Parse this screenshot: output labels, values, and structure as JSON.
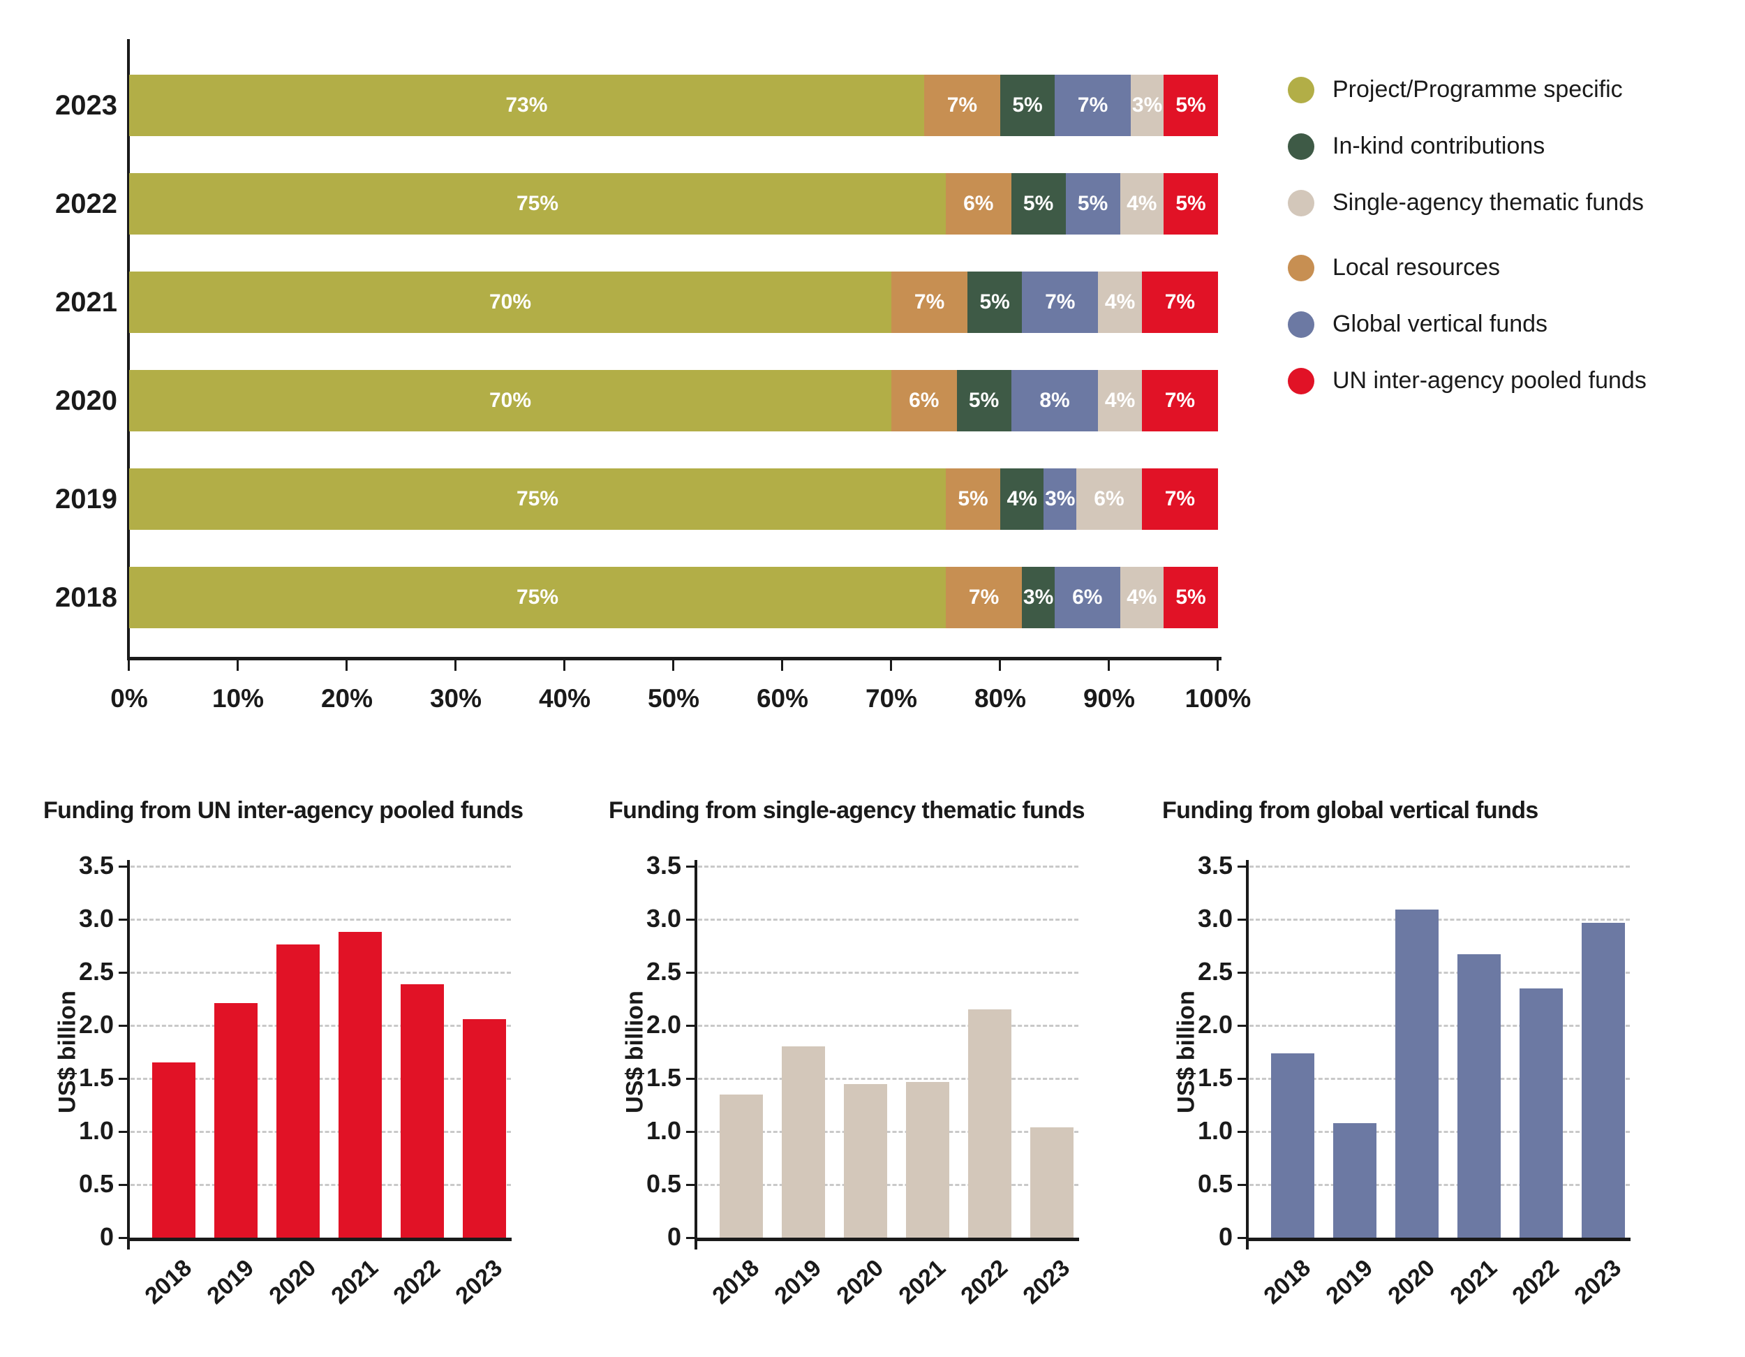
{
  "colors": {
    "project": "#b2ae47",
    "inkind": "#3e5a46",
    "thematic": "#d3c7ba",
    "local": "#c78f52",
    "vertical": "#6c79a3",
    "pooled": "#e11226",
    "text": "#1a1a1a",
    "grid": "#c9c9c9",
    "bar_label": "#ffffff"
  },
  "legend": {
    "items": [
      {
        "label": "Project/Programme specific",
        "color_key": "project"
      },
      {
        "label": "In-kind contributions",
        "color_key": "inkind"
      },
      {
        "label": "Single-agency thematic funds",
        "color_key": "thematic"
      },
      {
        "label": "Local resources",
        "color_key": "local"
      },
      {
        "label": "Global vertical funds",
        "color_key": "vertical"
      },
      {
        "label": "UN inter-agency pooled funds",
        "color_key": "pooled"
      }
    ]
  },
  "chart_data": [
    {
      "id": "funding-shares-by-year",
      "type": "bar",
      "variant": "horizontal-stacked",
      "unit": "%",
      "categories": [
        "2023",
        "2022",
        "2021",
        "2020",
        "2019",
        "2018"
      ],
      "series": [
        {
          "name": "Project/Programme specific",
          "color_key": "project",
          "values": [
            73,
            75,
            70,
            70,
            75,
            75
          ]
        },
        {
          "name": "Local resources",
          "color_key": "local",
          "values": [
            7,
            6,
            7,
            6,
            5,
            7
          ]
        },
        {
          "name": "In-kind contributions",
          "color_key": "inkind",
          "values": [
            5,
            5,
            5,
            5,
            4,
            3
          ]
        },
        {
          "name": "Global vertical funds",
          "color_key": "vertical",
          "values": [
            7,
            5,
            7,
            8,
            3,
            6
          ]
        },
        {
          "name": "Single-agency thematic funds",
          "color_key": "thematic",
          "values": [
            3,
            4,
            4,
            4,
            6,
            4
          ]
        },
        {
          "name": "UN inter-agency pooled funds",
          "color_key": "pooled",
          "values": [
            5,
            5,
            7,
            7,
            7,
            5
          ]
        }
      ],
      "xlim": [
        0,
        100
      ],
      "x_tick_labels": [
        "0%",
        "10%",
        "20%",
        "30%",
        "40%",
        "50%",
        "60%",
        "70%",
        "80%",
        "90%",
        "100%"
      ],
      "grid": false,
      "legend_position": "right"
    },
    {
      "id": "pooled-funds-by-year",
      "type": "bar",
      "title": "Funding from UN inter-agency pooled funds",
      "ylabel": "US$ billion",
      "categories": [
        "2018",
        "2019",
        "2020",
        "2021",
        "2022",
        "2023"
      ],
      "values": [
        1.65,
        2.21,
        2.76,
        2.88,
        2.39,
        2.06
      ],
      "color_key": "pooled",
      "ylim": [
        0,
        3.5
      ],
      "y_tick_labels": [
        "0",
        "0.5",
        "1.0",
        "1.5",
        "2.0",
        "2.5",
        "3.0",
        "3.5"
      ],
      "grid": true
    },
    {
      "id": "thematic-funds-by-year",
      "type": "bar",
      "title": "Funding from single-agency thematic funds",
      "ylabel": "US$ billion",
      "categories": [
        "2018",
        "2019",
        "2020",
        "2021",
        "2022",
        "2023"
      ],
      "values": [
        1.35,
        1.8,
        1.45,
        1.47,
        2.15,
        1.04
      ],
      "color_key": "thematic",
      "ylim": [
        0,
        3.5
      ],
      "y_tick_labels": [
        "0",
        "0.5",
        "1.0",
        "1.5",
        "2.0",
        "2.5",
        "3.0",
        "3.5"
      ],
      "grid": true
    },
    {
      "id": "vertical-funds-by-year",
      "type": "bar",
      "title": "Funding from global vertical funds",
      "ylabel": "US$ billion",
      "categories": [
        "2018",
        "2019",
        "2020",
        "2021",
        "2022",
        "2023"
      ],
      "values": [
        1.74,
        1.08,
        3.09,
        2.67,
        2.35,
        2.97
      ],
      "color_key": "vertical",
      "ylim": [
        0,
        3.5
      ],
      "y_tick_labels": [
        "0",
        "0.5",
        "1.0",
        "1.5",
        "2.0",
        "2.5",
        "3.0",
        "3.5"
      ],
      "grid": true
    }
  ]
}
